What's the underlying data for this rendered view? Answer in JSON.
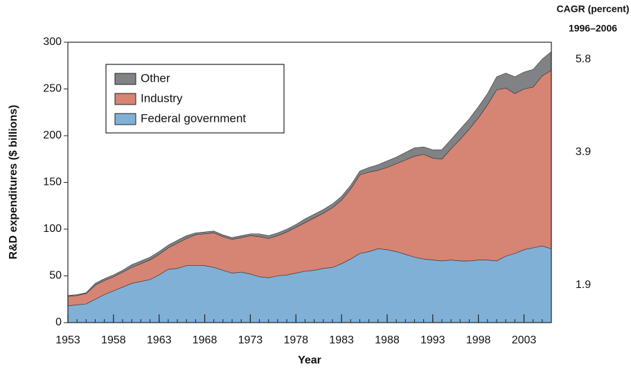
{
  "chart_data": {
    "type": "stacked-area",
    "y_label": "R&D expenditures ($ billions)",
    "x_label": "Year",
    "annotation_title": "CAGR (percent)",
    "annotation_period": "1996–2006",
    "annotations": [
      "5.8",
      "3.9",
      "1.9"
    ],
    "x": [
      1953,
      1954,
      1955,
      1956,
      1957,
      1958,
      1959,
      1960,
      1961,
      1962,
      1963,
      1964,
      1965,
      1966,
      1967,
      1968,
      1969,
      1970,
      1971,
      1972,
      1973,
      1974,
      1975,
      1976,
      1977,
      1978,
      1979,
      1980,
      1981,
      1982,
      1983,
      1984,
      1985,
      1986,
      1987,
      1988,
      1989,
      1990,
      1991,
      1992,
      1993,
      1994,
      1995,
      1996,
      1997,
      1998,
      1999,
      2000,
      2001,
      2002,
      2003,
      2004,
      2005,
      2006
    ],
    "series": [
      {
        "name": "Federal government",
        "color": "#80b0d6",
        "values": [
          18,
          19,
          20,
          25,
          30,
          34,
          38,
          42,
          44,
          46,
          51,
          57,
          58,
          61,
          61,
          61,
          59,
          56,
          53,
          54,
          52,
          49,
          48,
          50,
          51,
          53,
          55,
          56,
          58,
          59,
          63,
          68,
          74,
          76,
          79,
          78,
          76,
          73,
          70,
          68,
          67,
          66,
          67,
          66,
          66,
          67,
          67,
          66,
          71,
          74,
          78,
          80,
          82,
          79
        ]
      },
      {
        "name": "Industry",
        "color": "#d68473",
        "values": [
          10,
          10,
          11,
          15,
          15,
          15,
          16,
          17,
          19,
          21,
          22,
          23,
          27,
          29,
          33,
          34,
          37,
          36,
          36,
          37,
          41,
          43,
          42,
          43,
          46,
          49,
          52,
          56,
          59,
          64,
          68,
          75,
          84,
          85,
          84,
          88,
          94,
          101,
          108,
          112,
          109,
          109,
          119,
          130,
          141,
          152,
          166,
          183,
          180,
          171,
          172,
          172,
          182,
          191
        ]
      },
      {
        "name": "Other",
        "color": "#808285",
        "values": [
          1,
          1,
          1,
          2,
          2,
          2,
          2,
          3,
          3,
          3,
          3,
          3,
          3,
          3,
          2,
          2,
          2,
          2,
          2,
          2,
          2,
          3,
          3,
          3,
          3,
          3,
          4,
          4,
          4,
          4,
          4,
          4,
          4,
          5,
          6,
          7,
          7,
          8,
          9,
          8,
          9,
          10,
          10,
          11,
          11,
          12,
          12,
          14,
          16,
          18,
          18,
          19,
          18,
          20
        ]
      }
    ],
    "xlim": [
      1953,
      2006
    ],
    "xticks": [
      1953,
      1958,
      1963,
      1968,
      1973,
      1978,
      1983,
      1988,
      1993,
      1998,
      2003
    ],
    "ylim": [
      0,
      300
    ],
    "yticks": [
      0,
      50,
      100,
      150,
      200,
      250,
      300
    ]
  }
}
